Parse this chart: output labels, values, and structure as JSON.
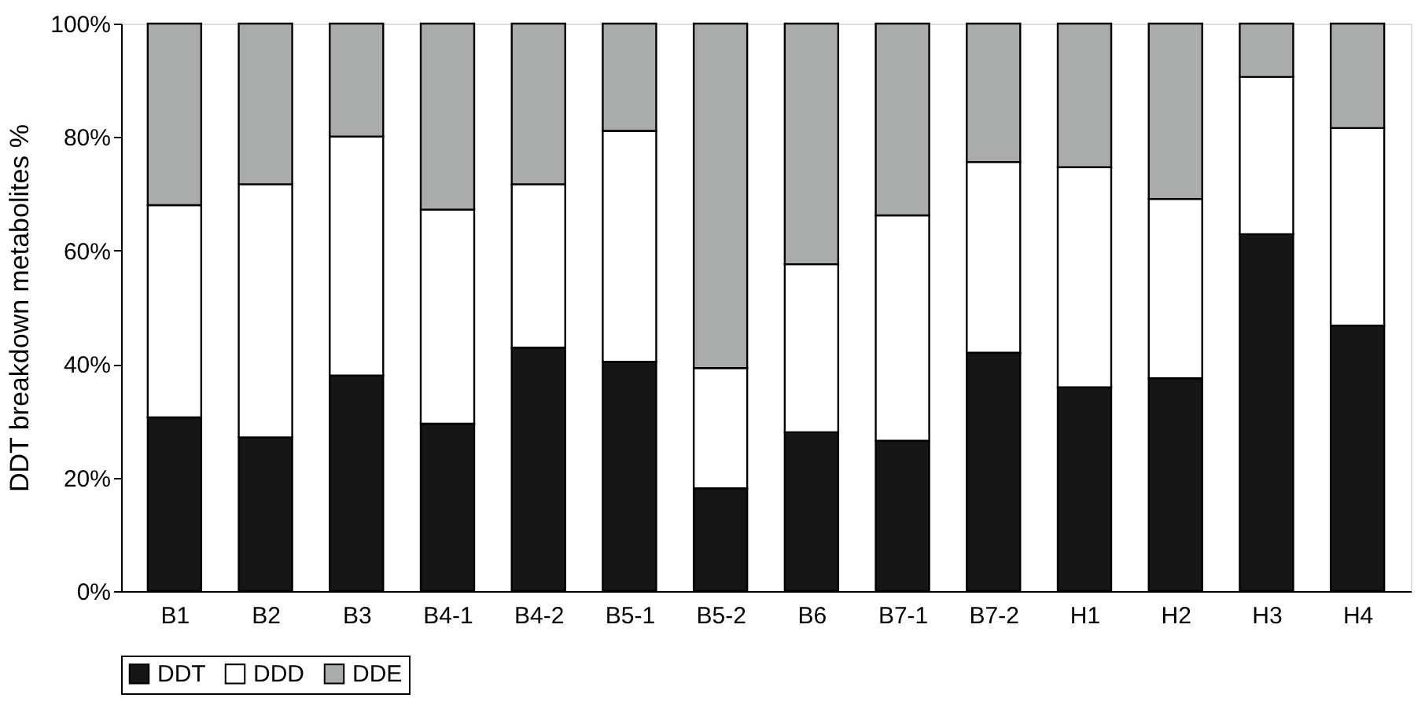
{
  "chart_data": {
    "type": "bar",
    "stacked": true,
    "ylabel": "DDT breakdown metabolites %",
    "categories": [
      "B1",
      "B2",
      "B3",
      "B4-1",
      "B4-2",
      "B5-1",
      "B5-2",
      "B6",
      "B7-1",
      "B7-2",
      "H1",
      "H2",
      "H3",
      "H4"
    ],
    "series": [
      {
        "name": "DDT",
        "color": "#161616",
        "values": [
          30.6,
          27.1,
          38.0,
          29.5,
          42.9,
          40.4,
          18.1,
          28.0,
          26.5,
          42.0,
          35.9,
          37.5,
          62.9,
          46.8
        ]
      },
      {
        "name": "DDD",
        "color": "#ffffff",
        "values": [
          37.4,
          44.6,
          42.1,
          37.7,
          28.8,
          40.7,
          21.2,
          29.6,
          39.7,
          33.6,
          38.8,
          31.6,
          27.7,
          34.8
        ]
      },
      {
        "name": "DDE",
        "color": "#aaacab",
        "values": [
          32.0,
          28.3,
          19.9,
          32.8,
          28.3,
          18.9,
          60.7,
          42.4,
          33.8,
          24.4,
          25.3,
          30.9,
          9.4,
          18.4
        ]
      }
    ],
    "ylim": [
      0,
      100
    ],
    "yticks": [
      {
        "value": 0,
        "label": "0%"
      },
      {
        "value": 20,
        "label": "20%"
      },
      {
        "value": 40,
        "label": "40%"
      },
      {
        "value": 60,
        "label": "60%"
      },
      {
        "value": 80,
        "label": "80%"
      },
      {
        "value": 100,
        "label": "100%"
      }
    ],
    "grid": false,
    "legend": "bottom"
  }
}
